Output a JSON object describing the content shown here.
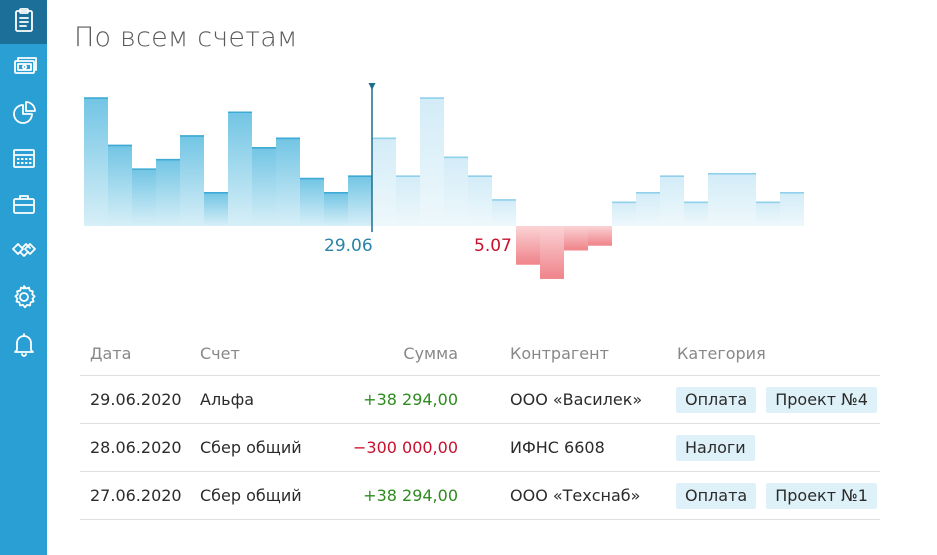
{
  "page": {
    "title": "По всем счетам"
  },
  "sidebar": {
    "items": [
      {
        "icon": "clipboard-icon",
        "active": true
      },
      {
        "icon": "banknote-icon",
        "active": false
      },
      {
        "icon": "pie-chart-icon",
        "active": false
      },
      {
        "icon": "calendar-icon",
        "active": false
      },
      {
        "icon": "briefcase-icon",
        "active": false
      },
      {
        "icon": "handshake-icon",
        "active": false
      },
      {
        "icon": "gear-icon",
        "active": false
      },
      {
        "icon": "bell-icon",
        "active": false
      }
    ]
  },
  "chart": {
    "current_label": "29.06",
    "negative_label": "5.07",
    "current_index": 11,
    "values": [
      54,
      34,
      24,
      28,
      38,
      14,
      48,
      33,
      37,
      20,
      14,
      21,
      37,
      21,
      54,
      29,
      21,
      11,
      -16,
      -22,
      -10,
      -8,
      10,
      14,
      21,
      10,
      22,
      22,
      10,
      14
    ],
    "colors": {
      "past": "#5cbfe0",
      "future": "#c8e9f6",
      "negative": "#f08a8f",
      "marker": "#1e6f8f"
    }
  },
  "table": {
    "headers": {
      "date": "Дата",
      "account": "Счет",
      "sum": "Сумма",
      "counterparty": "Контрагент",
      "category": "Категория"
    },
    "rows": [
      {
        "date": "29.06.2020",
        "account": "Альфа",
        "sum": "+38 294,00",
        "sign": "pos",
        "counterparty": "ООО «Василек»",
        "tags": [
          "Оплата",
          "Проект №4"
        ]
      },
      {
        "date": "28.06.2020",
        "account": "Сбер общий",
        "sum": "−300 000,00",
        "sign": "neg",
        "counterparty": "ИФНС 6608",
        "tags": [
          "Налоги"
        ]
      },
      {
        "date": "27.06.2020",
        "account": "Сбер общий",
        "sum": "+38 294,00",
        "sign": "pos",
        "counterparty": "ООО «Техснаб»",
        "tags": [
          "Оплата",
          "Проект №1"
        ]
      }
    ]
  }
}
